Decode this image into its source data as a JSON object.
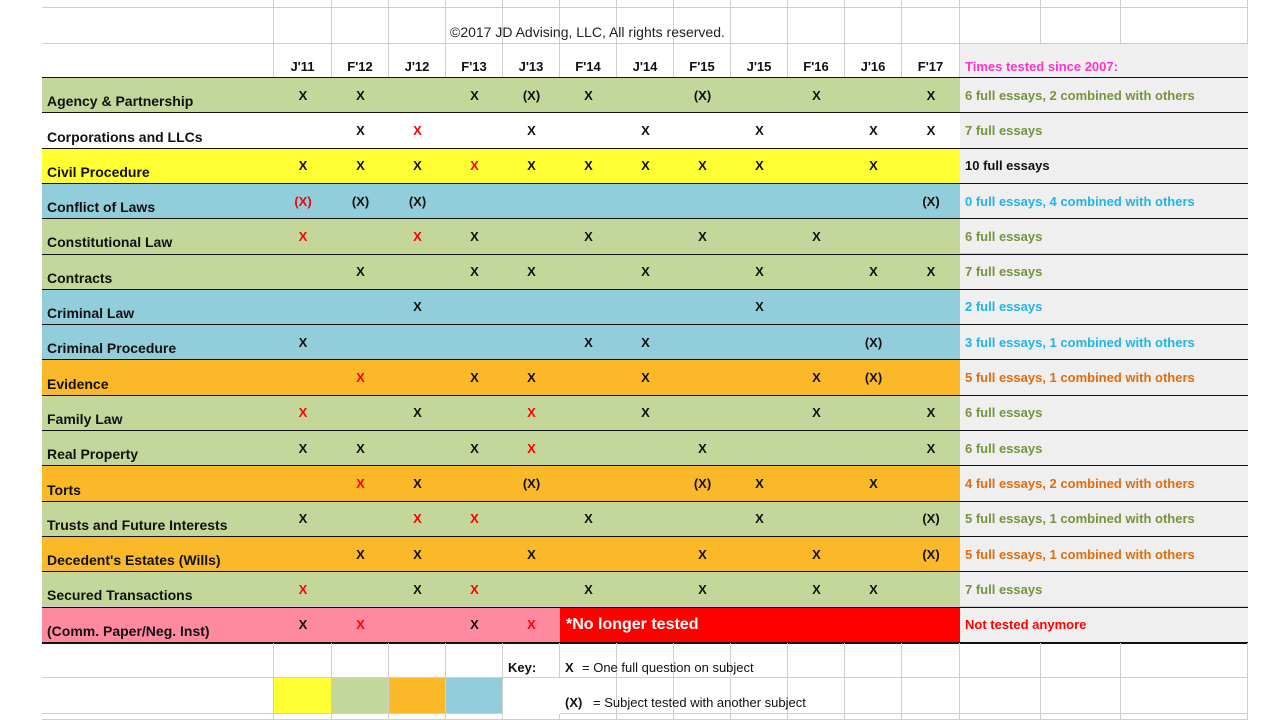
{
  "copyright": "©2017 JD Advising, LLC, All rights reserved.",
  "columns": [
    "J'11",
    "F'12",
    "J'12",
    "F'13",
    "J'13",
    "F'14",
    "J'14",
    "F'15",
    "J'15",
    "F'16",
    "J'16",
    "F'17"
  ],
  "summary_header": "Times tested since 2007:",
  "colors": {
    "yellow": "#ffff33",
    "green": "#c4d79b",
    "orange": "#fbb829",
    "blue": "#92cddc",
    "pink": "#ff8aa0",
    "red": "#ff0000",
    "summary_bg": "#efefef",
    "text_green": "#77933c",
    "text_blue": "#1fb5e8",
    "text_orange": "#e46c0a",
    "text_pink": "#ff33cc",
    "text_red": "#ff0000"
  },
  "rows": [
    {
      "subject": "Agency & Partnership",
      "color": "green",
      "summary": "6 full essays, 2 combined with others",
      "summary_color": "text_green",
      "marks": [
        "X",
        "X",
        "",
        "X",
        "(X)",
        "X",
        "",
        "(X)",
        "",
        "X",
        "",
        "X"
      ],
      "red": []
    },
    {
      "subject": "Corporations and LLCs",
      "color": "none",
      "summary": "7 full essays",
      "summary_color": "text_green",
      "marks": [
        "",
        "X",
        "X",
        "",
        "X",
        "",
        "X",
        "",
        "X",
        "",
        "X",
        "X"
      ],
      "red": [
        2
      ]
    },
    {
      "subject": "Civil Procedure",
      "color": "yellow",
      "summary": "10 full essays",
      "summary_color": "text_black",
      "marks": [
        "X",
        "X",
        "X",
        "X",
        "X",
        "X",
        "X",
        "X",
        "X",
        "",
        "X",
        ""
      ],
      "red": [
        3
      ]
    },
    {
      "subject": "Conflict of Laws",
      "color": "blue",
      "summary": "0 full essays, 4 combined with others",
      "summary_color": "text_blue",
      "marks": [
        "(X)",
        "(X)",
        "(X)",
        "",
        "",
        "",
        "",
        "",
        "",
        "",
        "",
        "(X)"
      ],
      "red": [
        0
      ]
    },
    {
      "subject": "Constitutional Law",
      "color": "green",
      "summary": "6 full essays",
      "summary_color": "text_green",
      "marks": [
        "X",
        "",
        "X",
        "X",
        "",
        "X",
        "",
        "X",
        "",
        "X",
        "",
        ""
      ],
      "red": [
        0,
        2
      ]
    },
    {
      "subject": "Contracts",
      "color": "green",
      "summary": "7 full essays",
      "summary_color": "text_green",
      "marks": [
        "",
        "X",
        "",
        "X",
        "X",
        "",
        "X",
        "",
        "X",
        "",
        "X",
        "X"
      ],
      "red": []
    },
    {
      "subject": "Criminal Law",
      "color": "blue",
      "summary": "2 full essays",
      "summary_color": "text_blue",
      "marks": [
        "",
        "",
        "X",
        "",
        "",
        "",
        "",
        "",
        "X",
        "",
        "",
        ""
      ],
      "red": []
    },
    {
      "subject": "Criminal Procedure",
      "color": "blue",
      "summary": "3 full essays, 1 combined with others",
      "summary_color": "text_blue",
      "marks": [
        "X",
        "",
        "",
        "",
        "",
        "X",
        "X",
        "",
        "",
        "",
        "(X)",
        ""
      ],
      "red": []
    },
    {
      "subject": "Evidence",
      "color": "orange",
      "summary": "5 full essays, 1 combined with others",
      "summary_color": "text_orange",
      "marks": [
        "",
        "X",
        "",
        "X",
        "X",
        "",
        "X",
        "",
        "",
        "X",
        "(X)",
        ""
      ],
      "red": [
        1
      ]
    },
    {
      "subject": "Family Law",
      "color": "green",
      "summary": "6 full essays",
      "summary_color": "text_green",
      "marks": [
        "X",
        "",
        "X",
        "",
        "X",
        "",
        "X",
        "",
        "",
        "X",
        "",
        "X"
      ],
      "red": [
        0,
        4
      ]
    },
    {
      "subject": "Real Property",
      "color": "green",
      "summary": "6 full essays",
      "summary_color": "text_green",
      "marks": [
        "X",
        "X",
        "",
        "X",
        "X",
        "",
        "",
        "X",
        "",
        "",
        "",
        "X"
      ],
      "red": [
        4
      ]
    },
    {
      "subject": "Torts",
      "color": "orange",
      "summary": "4 full essays, 2 combined with others",
      "summary_color": "text_orange",
      "marks": [
        "",
        "X",
        "X",
        "",
        "(X)",
        "",
        "",
        "(X)",
        "X",
        "",
        "X",
        ""
      ],
      "red": [
        1
      ]
    },
    {
      "subject": "Trusts and Future Interests",
      "color": "green",
      "summary": "5 full essays, 1 combined with others",
      "summary_color": "text_green",
      "marks": [
        "X",
        "",
        "X",
        "X",
        "",
        "X",
        "",
        "",
        "X",
        "",
        "",
        "(X)"
      ],
      "red": [
        2,
        3
      ]
    },
    {
      "subject": "Decedent's Estates (Wills)",
      "color": "orange",
      "summary": "5 full essays, 1 combined with others",
      "summary_color": "text_orange",
      "marks": [
        "",
        "X",
        "X",
        "",
        "X",
        "",
        "",
        "X",
        "",
        "X",
        "",
        "(X)"
      ],
      "red": []
    },
    {
      "subject": "Secured Transactions",
      "color": "green",
      "summary": "7 full essays",
      "summary_color": "text_green",
      "marks": [
        "X",
        "",
        "X",
        "X",
        "",
        "X",
        "",
        "X",
        "",
        "X",
        "X",
        ""
      ],
      "red": [
        0,
        3
      ]
    },
    {
      "subject": "(Comm. Paper/Neg. Inst)",
      "color": "pink",
      "summary": "Not tested anymore",
      "summary_color": "text_red",
      "marks": [
        "X",
        "X",
        "",
        "X",
        "X",
        "",
        "",
        "",
        "",
        "",
        "",
        ""
      ],
      "red": [
        1,
        4
      ]
    }
  ],
  "no_longer_tested": "*No longer tested",
  "key": {
    "label": "Key:",
    "x_symbol": "X",
    "x_text": "= One full question on subject",
    "combined_symbol": "(X)",
    "combined_text": "= Subject tested with another subject"
  }
}
